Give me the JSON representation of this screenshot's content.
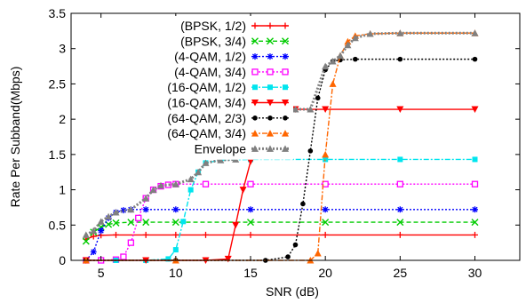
{
  "chart_data": {
    "type": "line",
    "title": "",
    "xlabel": "SNR (dB)",
    "ylabel": "Rate Per Subband(Mbps)",
    "xlim": [
      3,
      33
    ],
    "ylim": [
      0,
      3.5
    ],
    "xticks": [
      "5",
      "10",
      "15",
      "20",
      "25",
      "30"
    ],
    "yticks": [
      "0",
      "0.5",
      "1",
      "1.5",
      "2",
      "2.5",
      "3",
      "3.5"
    ],
    "grid": false,
    "legend_position": "top-right",
    "series": [
      {
        "name": "(BPSK, 1/2)",
        "color": "#ff0000",
        "marker": "plus",
        "dash": "solid",
        "x": [
          4,
          4.5,
          5,
          6,
          8,
          10,
          12,
          15,
          20,
          25,
          30
        ],
        "y": [
          0.3,
          0.34,
          0.355,
          0.36,
          0.36,
          0.36,
          0.36,
          0.36,
          0.36,
          0.36,
          0.36
        ]
      },
      {
        "name": "(BPSK, 3/4)",
        "color": "#00cc00",
        "marker": "x",
        "dash": "dashed",
        "x": [
          4,
          4.5,
          5,
          5.5,
          6,
          7,
          8,
          10,
          15,
          20,
          25,
          30
        ],
        "y": [
          0.27,
          0.4,
          0.47,
          0.51,
          0.53,
          0.54,
          0.54,
          0.54,
          0.54,
          0.54,
          0.54,
          0.54
        ]
      },
      {
        "name": "(4-QAM, 1/2)",
        "color": "#0000ff",
        "marker": "star",
        "dash": "dotted",
        "x": [
          4,
          4.5,
          5,
          5.5,
          6,
          6.5,
          7,
          8,
          10,
          15,
          20,
          25,
          30
        ],
        "y": [
          0.0,
          0.12,
          0.42,
          0.6,
          0.68,
          0.71,
          0.72,
          0.72,
          0.72,
          0.72,
          0.72,
          0.72,
          0.72
        ]
      },
      {
        "name": "(4-QAM, 3/4)",
        "color": "#ff00ff",
        "marker": "square-open",
        "dash": "dotted",
        "x": [
          4,
          5,
          6,
          6.5,
          7,
          7.5,
          8,
          8.5,
          9,
          9.5,
          10,
          12,
          15,
          20,
          25,
          30
        ],
        "y": [
          0.0,
          0.0,
          0.01,
          0.05,
          0.25,
          0.6,
          0.88,
          1.0,
          1.05,
          1.07,
          1.08,
          1.08,
          1.08,
          1.08,
          1.08,
          1.08
        ]
      },
      {
        "name": "(16-QAM, 1/2)",
        "color": "#00e5ee",
        "marker": "square",
        "dash": "dashdot",
        "x": [
          4,
          6,
          8,
          9.5,
          10,
          10.5,
          11,
          11.5,
          12,
          13,
          15,
          20,
          25,
          30
        ],
        "y": [
          0.0,
          0.0,
          0.0,
          0.02,
          0.15,
          0.55,
          1.0,
          1.25,
          1.38,
          1.42,
          1.43,
          1.43,
          1.43,
          1.43
        ]
      },
      {
        "name": "(16-QAM, 3/4)",
        "color": "#ff0000",
        "marker": "triangle-down",
        "dash": "solid",
        "x": [
          4,
          8,
          12,
          13.5,
          14,
          14.5,
          15,
          15.5,
          16,
          17,
          18,
          20,
          25,
          30
        ],
        "y": [
          0.0,
          0.0,
          0.0,
          0.02,
          0.5,
          1.0,
          1.4,
          1.85,
          2.05,
          2.13,
          2.14,
          2.14,
          2.14,
          2.14
        ]
      },
      {
        "name": "(64-QAM, 2/3)",
        "color": "#000000",
        "marker": "circle",
        "dash": "dotted",
        "x": [
          4,
          10,
          16,
          17.5,
          18,
          18.5,
          19,
          19.5,
          20,
          20.5,
          21,
          22,
          25,
          30
        ],
        "y": [
          0.0,
          0.0,
          0.0,
          0.05,
          0.22,
          0.8,
          1.55,
          2.3,
          2.7,
          2.82,
          2.84,
          2.85,
          2.85,
          2.85
        ]
      },
      {
        "name": "(64-QAM, 3/4)",
        "color": "#ff6600",
        "marker": "triangle",
        "dash": "dashdot",
        "x": [
          4,
          10,
          19,
          19.5,
          20,
          20.5,
          21,
          21.5,
          22,
          23,
          25,
          30
        ],
        "y": [
          0.0,
          0.0,
          0.0,
          0.1,
          1.5,
          2.5,
          2.9,
          3.1,
          3.18,
          3.21,
          3.22,
          3.22
        ]
      },
      {
        "name": "Envelope",
        "color": "#808080",
        "marker": "triangle",
        "dash": "dotted",
        "x": [
          4,
          4.5,
          5,
          5.5,
          6,
          7,
          8,
          8.5,
          9,
          10,
          11,
          11.5,
          12,
          13,
          14,
          14.5,
          15,
          15.5,
          16,
          17,
          18,
          19,
          20,
          20.5,
          21,
          21.5,
          22,
          23,
          25,
          30
        ],
        "y": [
          0.36,
          0.42,
          0.55,
          0.62,
          0.68,
          0.72,
          0.88,
          1.0,
          1.06,
          1.08,
          1.15,
          1.25,
          1.38,
          1.42,
          1.43,
          1.55,
          1.95,
          2.1,
          2.13,
          2.14,
          2.14,
          2.14,
          2.75,
          2.82,
          2.9,
          3.05,
          3.15,
          3.21,
          3.22,
          3.22
        ]
      }
    ]
  }
}
